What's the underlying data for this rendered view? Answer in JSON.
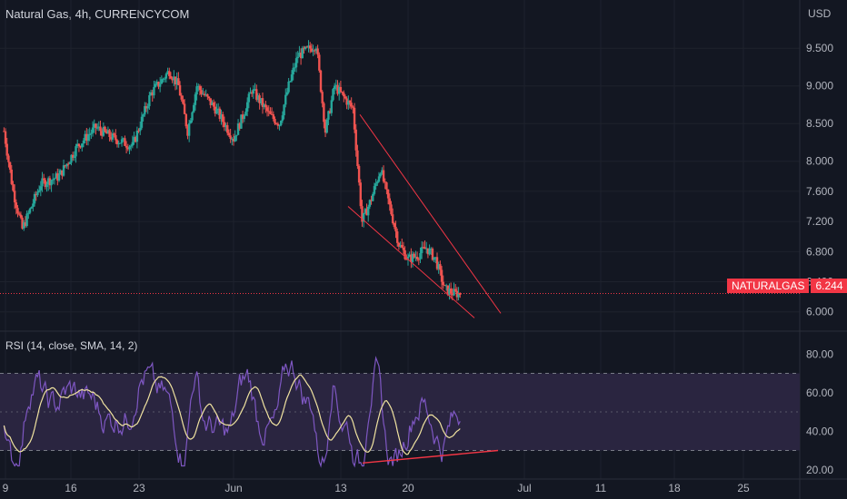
{
  "header": {
    "title": "Natural Gas, 4h, CURRENCYCOM",
    "currency": "USD"
  },
  "rsi": {
    "title": "RSI (14, close, SMA, 14, 2)"
  },
  "ticker": {
    "name": "NATURALGAS",
    "price": "6.244"
  },
  "colors": {
    "up": "#26a69a",
    "down": "#ef5350",
    "rsi_line": "#7e57c2",
    "rsi_ma": "#f0e3a0",
    "trendline": "#f23645",
    "rsi_band": "#2a2540",
    "price_tag": "#f23645"
  },
  "chart_data": [
    {
      "type": "candlestick",
      "title": "Natural Gas, 4h, CURRENCYCOM",
      "ylim": [
        5.78,
        9.9
      ],
      "y_ticks": [
        "9.500",
        "9.000",
        "8.500",
        "8.000",
        "7.600",
        "7.200",
        "6.800",
        "6.400",
        "6.000"
      ],
      "x_ticks": [
        "9",
        "16",
        "23",
        "Jun",
        "13",
        "20",
        "Jul",
        "11",
        "18",
        "25"
      ],
      "last_price": 6.244,
      "price_path": [
        {
          "x": "May 7",
          "y": 8.4
        },
        {
          "x": "May 8",
          "y": 7.6
        },
        {
          "x": "May 9",
          "y": 7.1
        },
        {
          "x": "May 11",
          "y": 7.7
        },
        {
          "x": "May 13",
          "y": 7.8
        },
        {
          "x": "May 15",
          "y": 8.2
        },
        {
          "x": "May 17",
          "y": 8.45
        },
        {
          "x": "May 19",
          "y": 8.3
        },
        {
          "x": "May 21",
          "y": 8.2
        },
        {
          "x": "May 23",
          "y": 8.9
        },
        {
          "x": "May 25",
          "y": 9.2
        },
        {
          "x": "May 26",
          "y": 9.0
        },
        {
          "x": "May 27",
          "y": 8.4
        },
        {
          "x": "May 28",
          "y": 9.0
        },
        {
          "x": "May 30",
          "y": 8.7
        },
        {
          "x": "Jun 1",
          "y": 8.3
        },
        {
          "x": "Jun 2",
          "y": 8.6
        },
        {
          "x": "Jun 3",
          "y": 8.95
        },
        {
          "x": "Jun 5",
          "y": 8.6
        },
        {
          "x": "Jun 6",
          "y": 8.5
        },
        {
          "x": "Jun 7",
          "y": 9.0
        },
        {
          "x": "Jun 8",
          "y": 9.4
        },
        {
          "x": "Jun 10",
          "y": 9.55
        },
        {
          "x": "Jun 11",
          "y": 8.4
        },
        {
          "x": "Jun 12",
          "y": 9.0
        },
        {
          "x": "Jun 13",
          "y": 8.85
        },
        {
          "x": "Jun 14",
          "y": 8.7
        },
        {
          "x": "Jun 15",
          "y": 7.2
        },
        {
          "x": "Jun 16",
          "y": 7.5
        },
        {
          "x": "Jun 17",
          "y": 7.9
        },
        {
          "x": "Jun 18",
          "y": 7.4
        },
        {
          "x": "Jun 19",
          "y": 6.9
        },
        {
          "x": "Jun 20",
          "y": 6.7
        },
        {
          "x": "Jun 21",
          "y": 6.75
        },
        {
          "x": "Jun 22",
          "y": 6.85
        },
        {
          "x": "Jun 23",
          "y": 6.7
        },
        {
          "x": "Jun 24",
          "y": 6.3
        },
        {
          "x": "Jun 25",
          "y": 6.244
        }
      ]
    },
    {
      "type": "line",
      "title": "RSI (14, close, SMA, 14, 2)",
      "ylim": [
        18,
        82
      ],
      "y_ticks": [
        "80.00",
        "60.00",
        "40.00",
        "20.00"
      ],
      "band": [
        30,
        70
      ],
      "mid": 50
    }
  ]
}
